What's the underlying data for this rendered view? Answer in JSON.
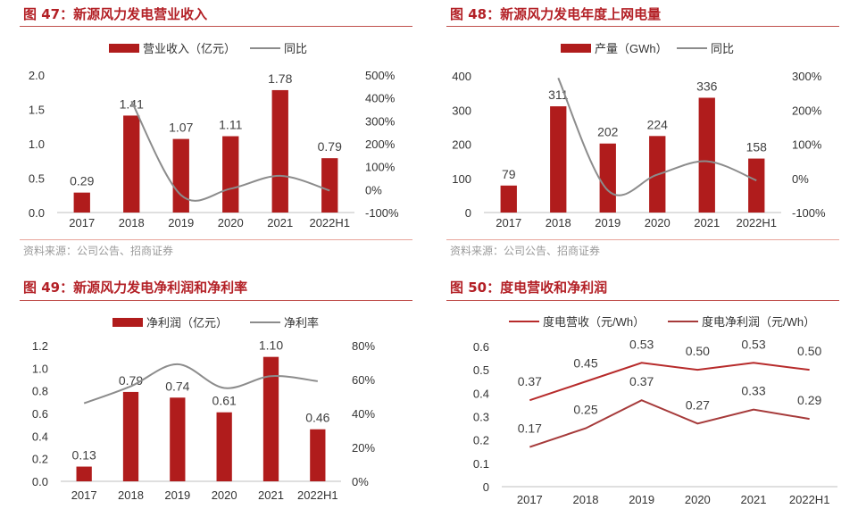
{
  "colors": {
    "bar": "#b01c1c",
    "line": "#8c8c8c",
    "title": "#b32026",
    "rule": "#c0504d",
    "line_red": "#b72b2b",
    "line_dark": "#a63a3a"
  },
  "source_text": "资料来源：公司公告、招商证券",
  "chart_data": [
    {
      "title": "图 47：新源风力发电营业收入",
      "type": "bar",
      "categories": [
        "2017",
        "2018",
        "2019",
        "2020",
        "2021",
        "2022H1"
      ],
      "series": [
        {
          "name": "营业收入（亿元）",
          "kind": "bar",
          "axis": "left",
          "values": [
            0.29,
            1.41,
            1.07,
            1.11,
            1.78,
            0.79
          ]
        },
        {
          "name": "同比",
          "kind": "line",
          "axis": "right",
          "smooth": true,
          "values": [
            null,
            386,
            -24,
            4,
            60,
            -4
          ]
        }
      ],
      "left_ticks": [
        "0.0",
        "0.5",
        "1.0",
        "1.5",
        "2.0"
      ],
      "left_range": [
        0,
        2.0
      ],
      "right_ticks": [
        "-100%",
        "0%",
        "100%",
        "200%",
        "300%",
        "400%",
        "500%"
      ],
      "right_range": [
        -100,
        500
      ],
      "value_labels": [
        "0.29",
        "1.41",
        "1.07",
        "1.11",
        "1.78",
        "0.79"
      ],
      "legend": "top-center"
    },
    {
      "title": "图 48：新源风力发电年度上网电量",
      "type": "bar",
      "categories": [
        "2017",
        "2018",
        "2019",
        "2020",
        "2021",
        "2022H1"
      ],
      "series": [
        {
          "name": "产量（GWh）",
          "kind": "bar",
          "axis": "left",
          "values": [
            79,
            311,
            202,
            224,
            336,
            158
          ]
        },
        {
          "name": "同比",
          "kind": "line",
          "axis": "right",
          "smooth": true,
          "values": [
            null,
            294,
            -35,
            11,
            50,
            -6
          ]
        }
      ],
      "left_ticks": [
        "0",
        "100",
        "200",
        "300",
        "400"
      ],
      "left_range": [
        0,
        400
      ],
      "right_ticks": [
        "-100%",
        "0%",
        "100%",
        "200%",
        "300%"
      ],
      "right_range": [
        -100,
        300
      ],
      "value_labels": [
        "79",
        "311",
        "202",
        "224",
        "336",
        "158"
      ],
      "legend": "top-center"
    },
    {
      "title": "图 49：新源风力发电净利润和净利率",
      "type": "bar",
      "categories": [
        "2017",
        "2018",
        "2019",
        "2020",
        "2021",
        "2022H1"
      ],
      "series": [
        {
          "name": "净利润（亿元）",
          "kind": "bar",
          "axis": "left",
          "values": [
            0.13,
            0.79,
            0.74,
            0.61,
            1.1,
            0.46
          ]
        },
        {
          "name": "净利率",
          "kind": "line",
          "axis": "right",
          "smooth": true,
          "values": [
            46,
            56,
            69,
            55,
            62,
            59
          ]
        }
      ],
      "left_ticks": [
        "0.0",
        "0.2",
        "0.4",
        "0.6",
        "0.8",
        "1.0",
        "1.2"
      ],
      "left_range": [
        0,
        1.2
      ],
      "right_ticks": [
        "0%",
        "20%",
        "40%",
        "60%",
        "80%"
      ],
      "right_range": [
        0,
        80
      ],
      "value_labels": [
        "0.13",
        "0.79",
        "0.74",
        "0.61",
        "1.10",
        "0.46"
      ],
      "legend": "top-center"
    },
    {
      "title": "图 50：度电营收和净利润",
      "type": "line",
      "categories": [
        "2017",
        "2018",
        "2019",
        "2020",
        "2021",
        "2022H1"
      ],
      "series": [
        {
          "name": "度电营收（元/Wh）",
          "kind": "line",
          "axis": "left",
          "values": [
            0.37,
            0.45,
            0.53,
            0.5,
            0.53,
            0.5
          ],
          "labels": [
            "0.37",
            "0.45",
            "0.53",
            "0.50",
            "0.53",
            "0.50"
          ]
        },
        {
          "name": "度电净利润（元/Wh）",
          "kind": "line",
          "axis": "left",
          "values": [
            0.17,
            0.25,
            0.37,
            0.27,
            0.33,
            0.29
          ],
          "labels": [
            "0.17",
            "0.25",
            "0.37",
            "0.27",
            "0.33",
            "0.29"
          ]
        }
      ],
      "left_ticks": [
        "0",
        "0.1",
        "0.2",
        "0.3",
        "0.4",
        "0.5",
        "0.6"
      ],
      "left_range": [
        0,
        0.6
      ],
      "legend": "top-center"
    }
  ]
}
